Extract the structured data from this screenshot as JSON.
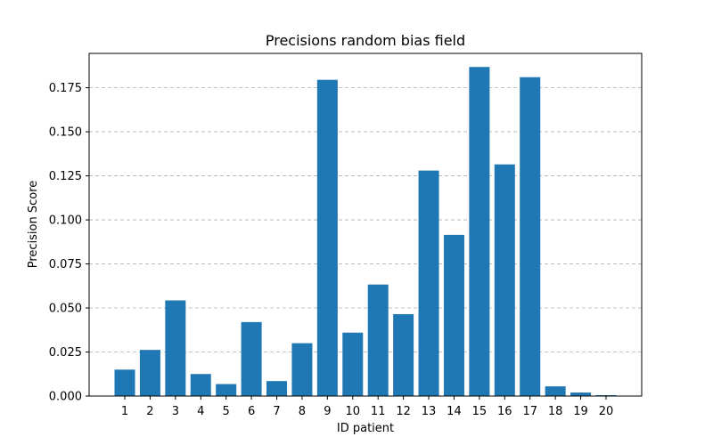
{
  "chart_data": {
    "type": "bar",
    "title": "Precisions random bias field",
    "xlabel": "ID patient",
    "ylabel": "Precision Score",
    "categories": [
      "1",
      "2",
      "3",
      "4",
      "5",
      "6",
      "7",
      "8",
      "9",
      "10",
      "11",
      "12",
      "13",
      "14",
      "15",
      "16",
      "17",
      "18",
      "19",
      "20"
    ],
    "values": [
      0.015,
      0.0262,
      0.0543,
      0.0125,
      0.0068,
      0.042,
      0.0085,
      0.03,
      0.1795,
      0.036,
      0.0633,
      0.0465,
      0.128,
      0.0915,
      0.1868,
      0.1315,
      0.181,
      0.0055,
      0.002,
      0.0005
    ],
    "ylim": [
      0,
      0.1945
    ],
    "yticks": [
      "0.000",
      "0.025",
      "0.050",
      "0.075",
      "0.100",
      "0.125",
      "0.150",
      "0.175"
    ],
    "ytick_values": [
      0,
      0.025,
      0.05,
      0.075,
      0.1,
      0.125,
      0.15,
      0.175
    ],
    "grid": "y-dashed",
    "bar_color": "#1f77b4",
    "grid_color": "#b0b0b0"
  }
}
